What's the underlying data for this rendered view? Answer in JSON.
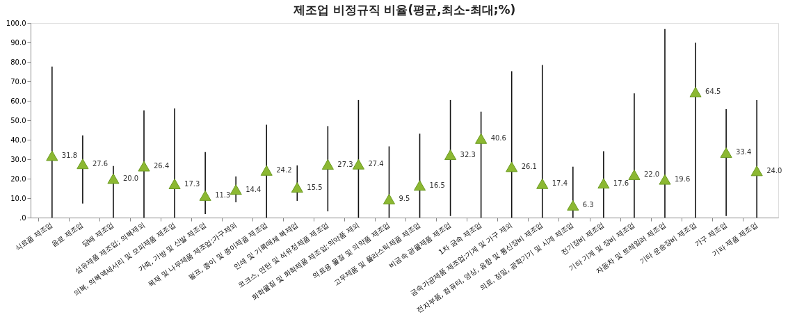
{
  "chart_data": {
    "type": "scatter",
    "title": "제조업 비정규직 비율(평균,최소-최대;%)",
    "categories": [
      "식료품 제조업",
      "음료 제조업",
      "담배 제조업",
      "섬유제품 제조업; 의복제외",
      "의복, 의복액세서리 및 모피제품 제조업",
      "가죽, 가방 및 신발 제조업",
      "목재 및 나무제품 제조업;가구제외",
      "펄프, 종이 및 종이제품 제조업",
      "인쇄 및 기록매체 복제업",
      "코크스, 연탄 및 석유정제품 제조업",
      "화학물질 및 화학제품 제조업;의약품 제외",
      "의료용 물질 및 의약품 제조업",
      "고무제품 및 플라스틱제품 제조업",
      "비금속 광물제품 제조업",
      "1차 금속 제조업",
      "금속가공제품 제조업;기계 및 가구 제외",
      "전자부품, 컴퓨터, 영상, 음향 및 통신장비 제조업",
      "의료, 정밀, 광학기기 및 시계 제조업",
      "전기장비 제조업",
      "기타 기계 및 장비 제조업",
      "자동차 및 트레일러 제조업",
      "기타 운송장비 제조업",
      "가구 제조업",
      "기타 제품 제조업"
    ],
    "series": [
      {
        "color": "#8cb832",
        "values": [
          31.8,
          27.6,
          20.0,
          26.4,
          17.3,
          11.3,
          14.4,
          24.2,
          15.5,
          27.3,
          27.4,
          9.5,
          16.5,
          32.3,
          40.6,
          26.1,
          17.4,
          6.3,
          17.6,
          22.0,
          19.6,
          64.5,
          33.4,
          24.0
        ],
        "value_labels": [
          "31.8",
          "27.6",
          "20.0",
          "26.4",
          "17.3",
          "11.3",
          "14.4",
          "24.2",
          "15.5",
          "27.3",
          "27.4",
          "9.5",
          "16.5",
          "32.3",
          "40.6",
          "26.1",
          "17.4",
          "6.3",
          "17.6",
          "22.0",
          "19.6",
          "64.5",
          "33.4",
          "24.0"
        ],
        "errors": [
          [
            0,
            77.6
          ],
          [
            7.2,
            42.2
          ],
          [
            0,
            26.5
          ],
          [
            0,
            55.1
          ],
          [
            0,
            56.1
          ],
          [
            1.8,
            33.7
          ],
          [
            7.9,
            21.2
          ],
          [
            0,
            47.7
          ],
          [
            8.6,
            26.8
          ],
          [
            3.2,
            47.0
          ],
          [
            0,
            60.4
          ],
          [
            0,
            36.6
          ],
          [
            0,
            43.1
          ],
          [
            0.8,
            60.4
          ],
          [
            0,
            54.4
          ],
          [
            0,
            75.2
          ],
          [
            0,
            78.4
          ],
          [
            0,
            26.2
          ],
          [
            0,
            34.1
          ],
          [
            0,
            63.8
          ],
          [
            0,
            96.9
          ],
          [
            0,
            89.8
          ],
          [
            0.8,
            55.7
          ],
          [
            0,
            60.4
          ]
        ]
      }
    ],
    "ylim": [
      0,
      100
    ],
    "yticks": [
      {
        "value": 0,
        "label": ".0"
      },
      {
        "value": 10,
        "label": "10.0"
      },
      {
        "value": 20,
        "label": "20.0"
      },
      {
        "value": 30,
        "label": "30.0"
      },
      {
        "value": 40,
        "label": "40.0"
      },
      {
        "value": 50,
        "label": "50.0"
      },
      {
        "value": 60,
        "label": "60.0"
      },
      {
        "value": 70,
        "label": "70.0"
      },
      {
        "value": 80,
        "label": "80.0"
      },
      {
        "value": 90,
        "label": "90.0"
      },
      {
        "value": 100,
        "label": "100.0"
      }
    ],
    "marker": "triangle",
    "data_labels": true,
    "grid": false
  }
}
